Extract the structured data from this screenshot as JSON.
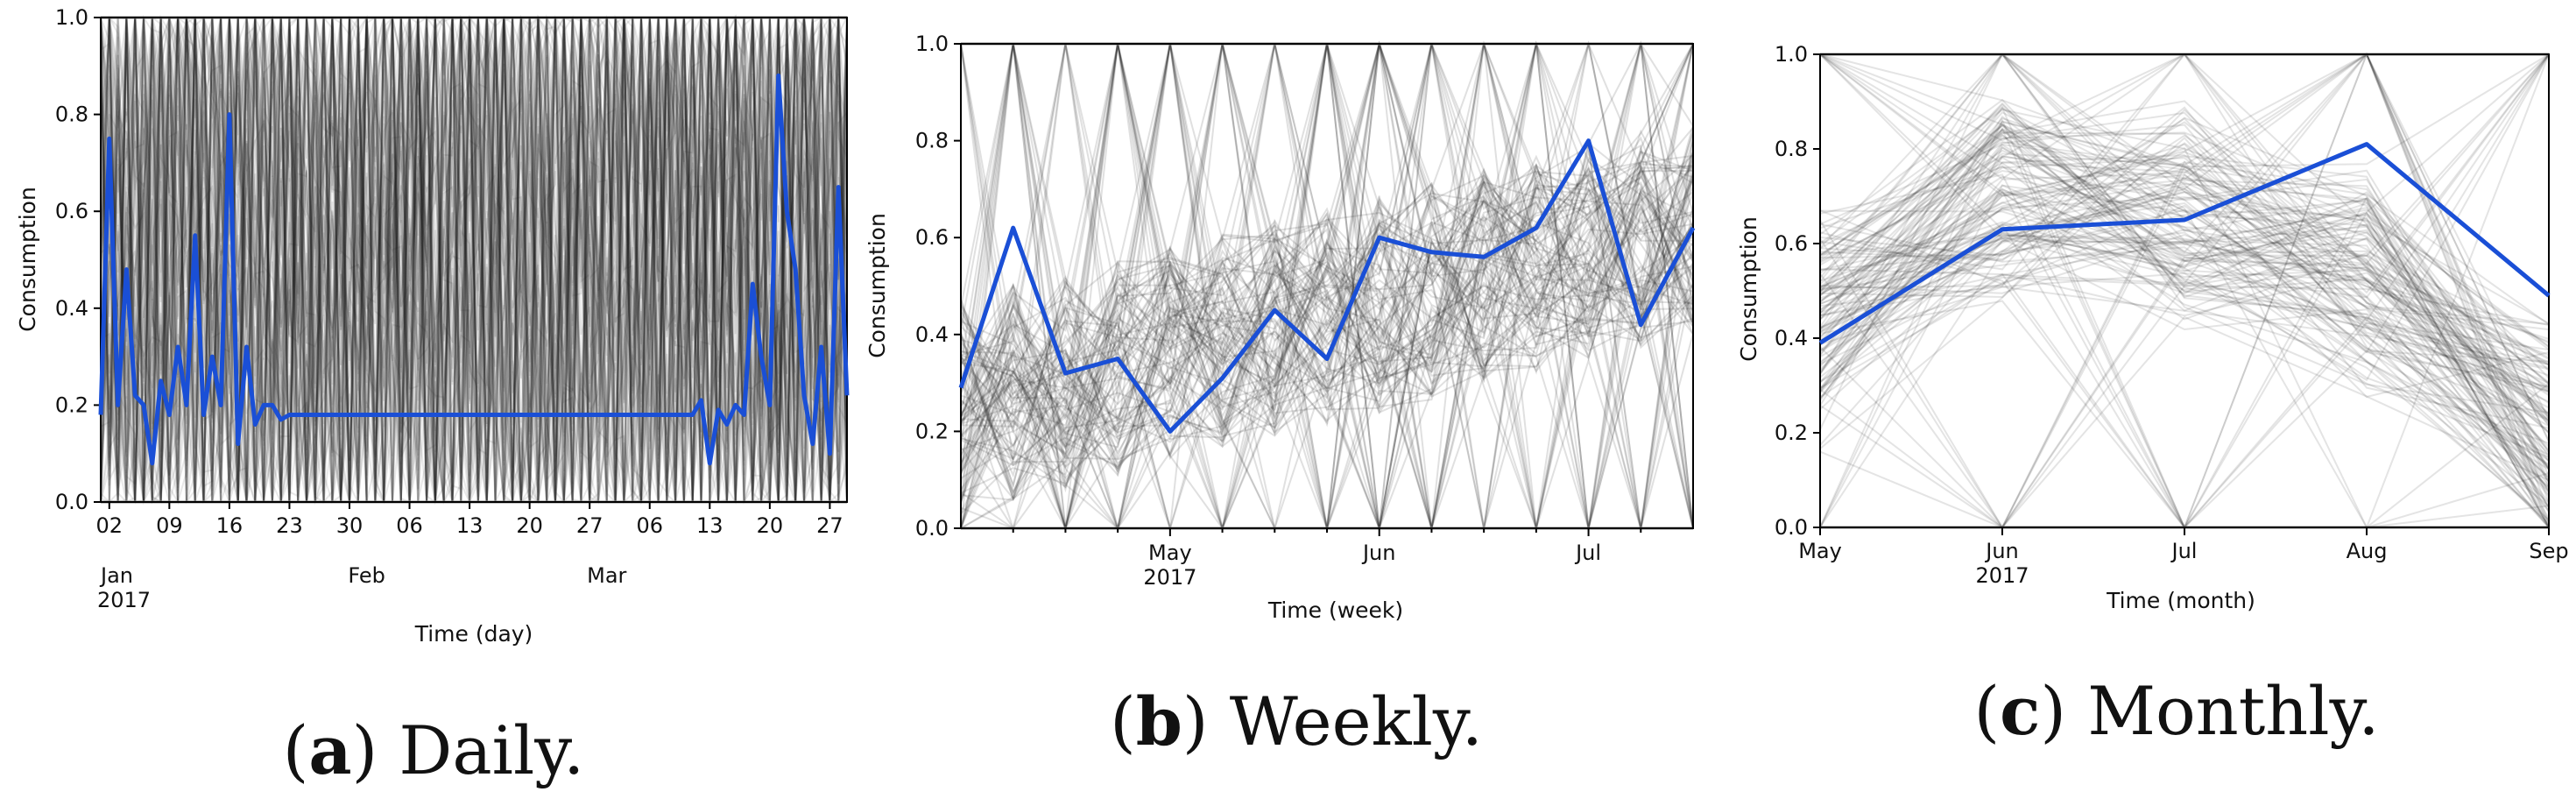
{
  "figure": {
    "highlight_color": "#1a4fd6",
    "background_color": "#222222"
  },
  "chart_data": [
    {
      "id": "daily",
      "type": "line",
      "caption": {
        "letter": "a",
        "text": "Daily."
      },
      "xlabel": "Time (day)",
      "ylabel": "Consumption",
      "ylim": [
        0,
        1
      ],
      "yticks": [
        "0.0",
        "0.2",
        "0.4",
        "0.6",
        "0.8",
        "1.0"
      ],
      "x_day_range": [
        0,
        87
      ],
      "xticks_minor": [
        {
          "day": 1,
          "label": "02"
        },
        {
          "day": 8,
          "label": "09"
        },
        {
          "day": 15,
          "label": "16"
        },
        {
          "day": 22,
          "label": "23"
        },
        {
          "day": 29,
          "label": "30"
        },
        {
          "day": 36,
          "label": "06"
        },
        {
          "day": 43,
          "label": "13"
        },
        {
          "day": 50,
          "label": "20"
        },
        {
          "day": 57,
          "label": "27"
        },
        {
          "day": 64,
          "label": "06"
        },
        {
          "day": 71,
          "label": "13"
        },
        {
          "day": 78,
          "label": "20"
        },
        {
          "day": 85,
          "label": "27"
        }
      ],
      "xticks_major": [
        {
          "day": 0,
          "label": "Jan",
          "year": "2017"
        },
        {
          "day": 31,
          "label": "Feb",
          "year": ""
        },
        {
          "day": 59,
          "label": "Mar",
          "year": ""
        }
      ],
      "background_series_count": 90,
      "background_opacity": 0.1,
      "highlight": {
        "x": [
          0,
          1,
          2,
          3,
          4,
          5,
          6,
          7,
          8,
          9,
          10,
          11,
          12,
          13,
          14,
          15,
          16,
          17,
          18,
          19,
          20,
          21,
          22,
          23,
          24,
          25,
          26,
          27,
          28,
          29,
          30,
          31,
          32,
          33,
          34,
          35,
          36,
          37,
          38,
          39,
          40,
          41,
          42,
          43,
          44,
          45,
          46,
          47,
          48,
          49,
          50,
          51,
          52,
          53,
          54,
          55,
          56,
          57,
          58,
          59,
          60,
          61,
          62,
          63,
          64,
          65,
          66,
          67,
          68,
          69,
          70,
          71,
          72,
          73,
          74,
          75,
          76,
          77,
          78,
          79,
          80,
          81,
          82,
          83,
          84,
          85,
          86,
          87
        ],
        "y": [
          0.18,
          0.75,
          0.2,
          0.48,
          0.22,
          0.2,
          0.08,
          0.25,
          0.18,
          0.32,
          0.2,
          0.55,
          0.18,
          0.3,
          0.2,
          0.8,
          0.12,
          0.32,
          0.16,
          0.2,
          0.2,
          0.17,
          0.18,
          0.18,
          0.18,
          0.18,
          0.18,
          0.18,
          0.18,
          0.18,
          0.18,
          0.18,
          0.18,
          0.18,
          0.18,
          0.18,
          0.18,
          0.18,
          0.18,
          0.18,
          0.18,
          0.18,
          0.18,
          0.18,
          0.18,
          0.18,
          0.18,
          0.18,
          0.18,
          0.18,
          0.18,
          0.18,
          0.18,
          0.18,
          0.18,
          0.18,
          0.18,
          0.18,
          0.18,
          0.18,
          0.18,
          0.18,
          0.18,
          0.18,
          0.18,
          0.18,
          0.18,
          0.18,
          0.18,
          0.18,
          0.21,
          0.08,
          0.19,
          0.16,
          0.2,
          0.18,
          0.45,
          0.3,
          0.2,
          0.88,
          0.6,
          0.48,
          0.22,
          0.12,
          0.32,
          0.1,
          0.65,
          0.22
        ]
      }
    },
    {
      "id": "weekly",
      "type": "line",
      "caption": {
        "letter": "b",
        "text": "Weekly."
      },
      "xlabel": "Time (week)",
      "ylabel": "Consumption",
      "ylim": [
        0,
        1
      ],
      "yticks": [
        "0.0",
        "0.2",
        "0.4",
        "0.6",
        "0.8",
        "1.0"
      ],
      "x_week_range": [
        0,
        14
      ],
      "xticks_major": [
        {
          "week": 4,
          "label": "May",
          "year": "2017"
        },
        {
          "week": 8,
          "label": "Jun",
          "year": ""
        },
        {
          "week": 12,
          "label": "Jul",
          "year": ""
        }
      ],
      "xticks_minor_weeks": [
        1,
        2,
        3,
        5,
        6,
        7,
        9,
        10,
        11,
        13
      ],
      "background_series_count": 120,
      "background_opacity": 0.14,
      "highlight": {
        "x": [
          0,
          1,
          2,
          3,
          4,
          5,
          6,
          7,
          8,
          9,
          10,
          11,
          12,
          13,
          14
        ],
        "y": [
          0.29,
          0.62,
          0.32,
          0.35,
          0.2,
          0.31,
          0.45,
          0.35,
          0.6,
          0.57,
          0.56,
          0.62,
          0.8,
          0.42,
          0.62
        ]
      }
    },
    {
      "id": "monthly",
      "type": "line",
      "caption": {
        "letter": "c",
        "text": "Monthly."
      },
      "xlabel": "Time (month)",
      "ylabel": "Consumption",
      "ylim": [
        0,
        1
      ],
      "yticks": [
        "0.0",
        "0.2",
        "0.4",
        "0.6",
        "0.8",
        "1.0"
      ],
      "categories": [
        "May",
        "Jun",
        "Jul",
        "Aug",
        "Sep"
      ],
      "year_label": "2017",
      "year_under": "Jun",
      "background_series_count": 140,
      "background_opacity": 0.12,
      "highlight": {
        "x": [
          0,
          1,
          2,
          3,
          4
        ],
        "y": [
          0.39,
          0.63,
          0.65,
          0.81,
          0.49
        ]
      }
    }
  ]
}
